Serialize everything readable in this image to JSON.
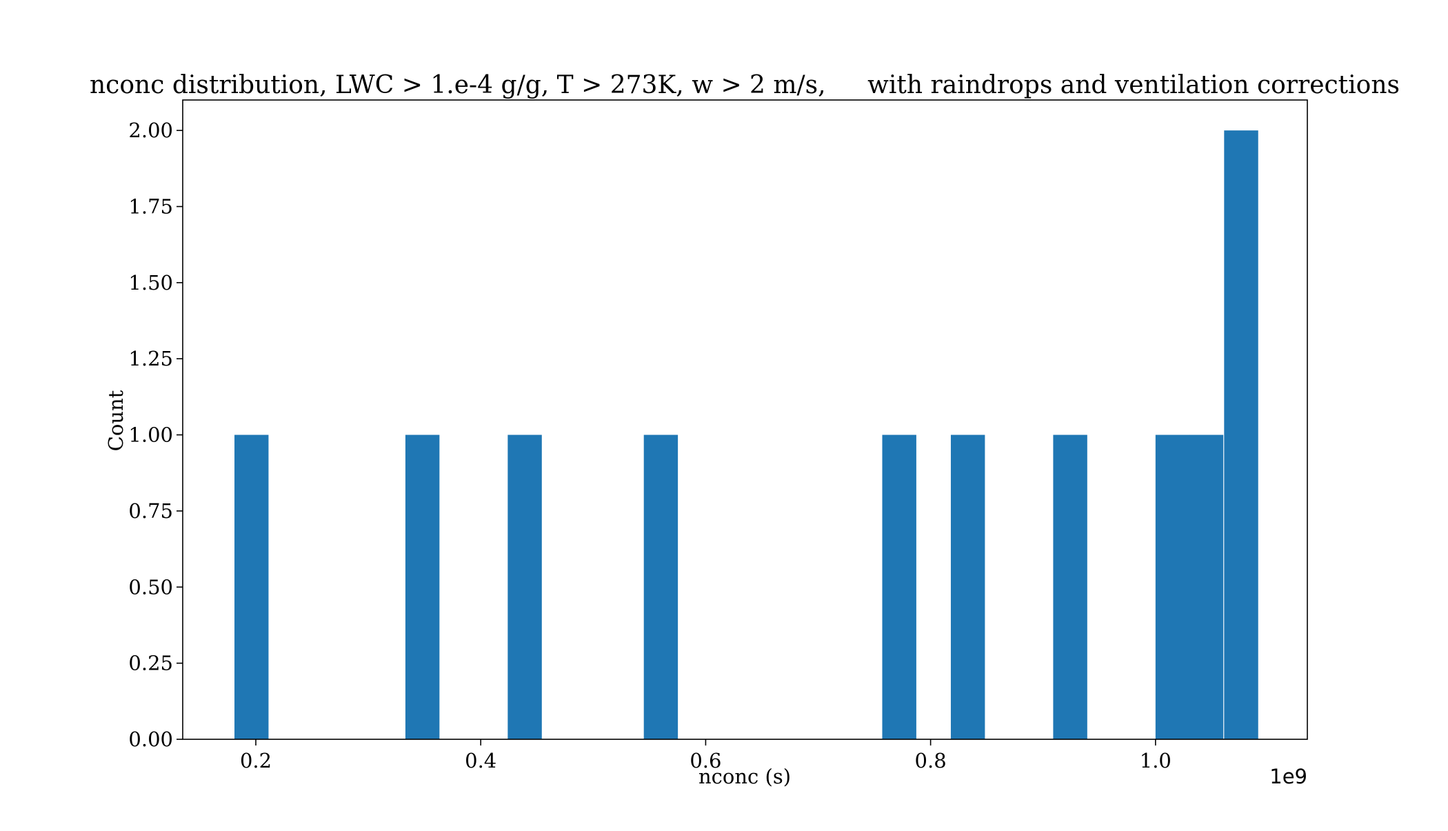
{
  "chart_data": {
    "type": "bar",
    "title_left": "nconc distribution, LWC > 1.e-4 g/g, T > 273K, w > 2 m/s,",
    "title_right": "with raindrops and ventilation corrections",
    "xlabel": "nconc (s)",
    "ylabel": "Count",
    "x_offset_label": "1e9",
    "xlim": [
      0.135,
      1.135
    ],
    "ylim": [
      0,
      2.1
    ],
    "bin_width": 0.0303,
    "bins": [
      {
        "x0": 0.181,
        "count": 1
      },
      {
        "x0": 0.333,
        "count": 1
      },
      {
        "x0": 0.424,
        "count": 1
      },
      {
        "x0": 0.545,
        "count": 1
      },
      {
        "x0": 0.757,
        "count": 1
      },
      {
        "x0": 0.818,
        "count": 1
      },
      {
        "x0": 0.909,
        "count": 1
      },
      {
        "x0": 1.0,
        "count": 1
      },
      {
        "x0": 1.03,
        "count": 1
      },
      {
        "x0": 1.061,
        "count": 2
      }
    ],
    "x_ticks": [
      "0.2",
      "0.4",
      "0.6",
      "0.8",
      "1.0"
    ],
    "y_ticks": [
      "0.00",
      "0.25",
      "0.50",
      "0.75",
      "1.00",
      "1.25",
      "1.50",
      "1.75",
      "2.00"
    ],
    "bar_color": "#1f77b4",
    "grid": false
  }
}
